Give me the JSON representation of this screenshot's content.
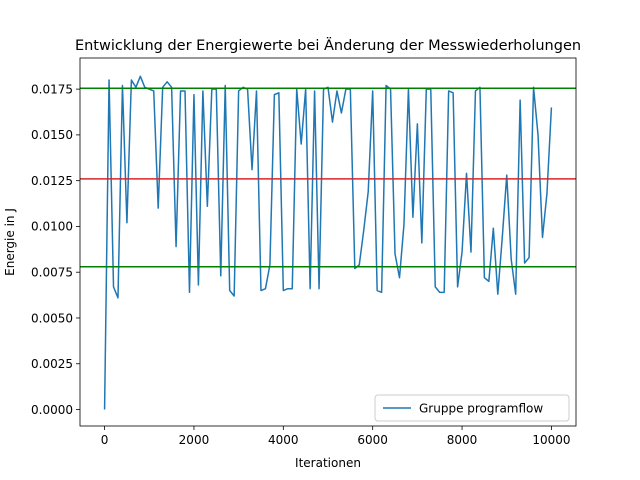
{
  "chart_data": {
    "type": "line",
    "title": "Entwicklung der Energiewerte bei Änderung der Messwiederholungen",
    "xlabel": "Iterationen",
    "ylabel": "Energie in J",
    "xlim": [
      -550,
      10550
    ],
    "ylim": [
      -0.0009,
      0.0192
    ],
    "x_ticks": [
      0,
      2000,
      4000,
      6000,
      8000,
      10000
    ],
    "x_tick_labels": [
      "0",
      "2000",
      "4000",
      "6000",
      "8000",
      "10000"
    ],
    "y_ticks": [
      0.0,
      0.0025,
      0.005,
      0.0075,
      0.01,
      0.0125,
      0.015,
      0.0175
    ],
    "y_tick_labels": [
      "0.0000",
      "0.0025",
      "0.0050",
      "0.0075",
      "0.0100",
      "0.0125",
      "0.0150",
      "0.0175"
    ],
    "grid": false,
    "legend": {
      "position": "bottom-right",
      "entries": [
        "Gruppe programflow"
      ]
    },
    "series": [
      {
        "name": "Gruppe programflow",
        "color": "#1f77b4",
        "x": [
          0,
          100,
          200,
          300,
          400,
          500,
          600,
          700,
          800,
          900,
          1000,
          1100,
          1200,
          1300,
          1400,
          1500,
          1600,
          1700,
          1800,
          1900,
          2000,
          2100,
          2200,
          2300,
          2400,
          2500,
          2600,
          2700,
          2800,
          2900,
          3000,
          3100,
          3200,
          3300,
          3400,
          3500,
          3600,
          3700,
          3800,
          3900,
          4000,
          4100,
          4200,
          4300,
          4400,
          4500,
          4600,
          4700,
          4800,
          4900,
          5000,
          5100,
          5200,
          5300,
          5400,
          5500,
          5600,
          5700,
          5800,
          5900,
          6000,
          6100,
          6200,
          6300,
          6400,
          6500,
          6600,
          6700,
          6800,
          6900,
          7000,
          7100,
          7200,
          7300,
          7400,
          7500,
          7600,
          7700,
          7800,
          7900,
          8000,
          8100,
          8200,
          8300,
          8400,
          8500,
          8600,
          8700,
          8800,
          8900,
          9000,
          9100,
          9200,
          9300,
          9400,
          9500,
          9600,
          9700,
          9800,
          9900,
          10000
        ],
        "y": [
          0.0,
          0.018,
          0.0067,
          0.0061,
          0.0177,
          0.0102,
          0.018,
          0.0176,
          0.0182,
          0.0176,
          0.0175,
          0.0174,
          0.011,
          0.0176,
          0.0179,
          0.0176,
          0.0089,
          0.0174,
          0.0174,
          0.0064,
          0.0172,
          0.0068,
          0.0174,
          0.0111,
          0.0175,
          0.0175,
          0.0073,
          0.0177,
          0.0065,
          0.0062,
          0.0174,
          0.0176,
          0.0175,
          0.0131,
          0.0174,
          0.0065,
          0.0066,
          0.0079,
          0.0172,
          0.0173,
          0.0065,
          0.0066,
          0.0066,
          0.0175,
          0.0145,
          0.0175,
          0.0066,
          0.0174,
          0.0066,
          0.0175,
          0.0176,
          0.0157,
          0.0174,
          0.0162,
          0.0175,
          0.0175,
          0.0077,
          0.0079,
          0.0098,
          0.0119,
          0.0174,
          0.0065,
          0.0064,
          0.0177,
          0.0175,
          0.0085,
          0.0072,
          0.0101,
          0.0175,
          0.0105,
          0.0156,
          0.0091,
          0.0175,
          0.0175,
          0.0067,
          0.0064,
          0.0064,
          0.0174,
          0.0173,
          0.0067,
          0.0086,
          0.0129,
          0.0086,
          0.0174,
          0.0176,
          0.0072,
          0.007,
          0.0099,
          0.0063,
          0.0094,
          0.0128,
          0.0082,
          0.0063,
          0.0169,
          0.008,
          0.0083,
          0.0176,
          0.015,
          0.0094,
          0.0118,
          0.0165
        ]
      }
    ],
    "hlines": [
      {
        "y": 0.0126,
        "color": "#d62728"
      },
      {
        "y": 0.01755,
        "color": "#008000"
      },
      {
        "y": 0.0078,
        "color": "#008000"
      }
    ]
  }
}
